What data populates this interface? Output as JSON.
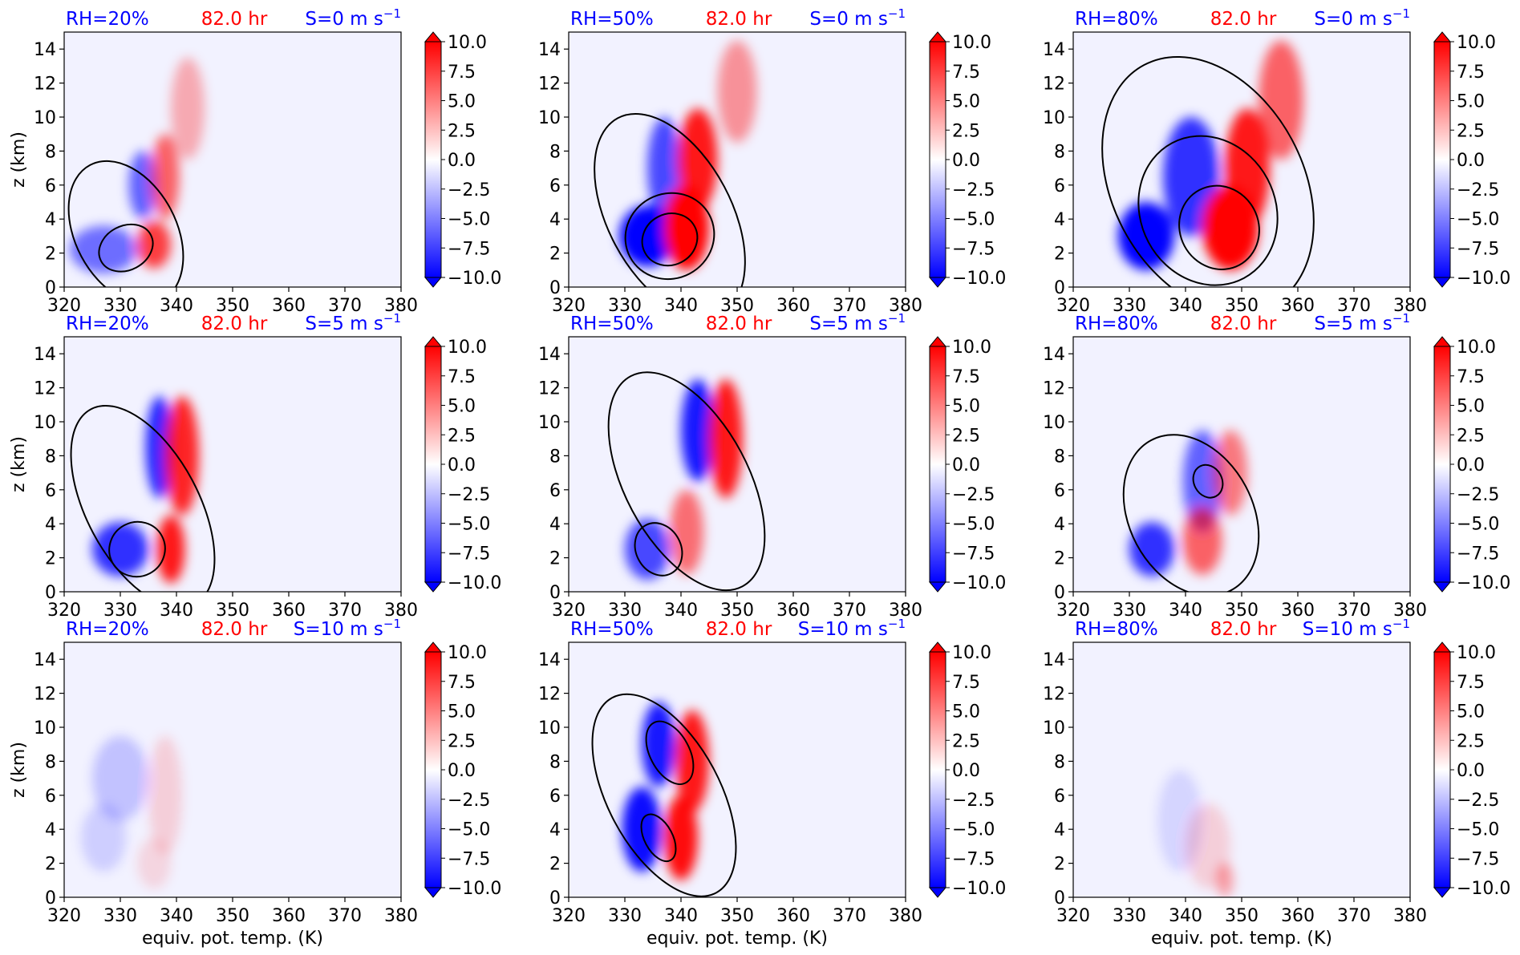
{
  "chart_data": {
    "type": "heatmap",
    "layout": "3x3 small multiples",
    "common": {
      "time_text": "82.0 hr",
      "xlabel": "equiv. pot. temp. (K)",
      "ylabel": "z (km)",
      "xlim": [
        320,
        380
      ],
      "ylim": [
        0,
        15
      ],
      "xticks": [
        "320",
        "330",
        "340",
        "350",
        "360",
        "370",
        "380"
      ],
      "yticks": [
        "0",
        "2",
        "4",
        "6",
        "8",
        "10",
        "12",
        "14"
      ],
      "colorbar": {
        "range": [
          -10.0,
          10.0
        ],
        "ticks": [
          "10.0",
          "7.5",
          "5.0",
          "2.5",
          "0.0",
          "−2.5",
          "−5.0",
          "−7.5",
          "−10.0"
        ],
        "extend": "both",
        "colormap": "bwr"
      },
      "colors": {
        "rh_text": "#0000ff",
        "time_text": "#ff0000",
        "shear_text": "#0000ff",
        "positive": "#ff0000",
        "negative": "#0000ff",
        "contour": "#000000",
        "background": "#f2f2ff"
      }
    },
    "panels": [
      {
        "rh": "RH=20%",
        "shear": "S=0 m s",
        "exp": "−1",
        "row": 0,
        "col": 0,
        "features": [
          {
            "sign": "neg",
            "t": 327,
            "z": 2.2,
            "dt": 6,
            "dz": 1.4,
            "amp": 0.55
          },
          {
            "sign": "neg",
            "t": 334,
            "z": 6.0,
            "dt": 2.5,
            "dz": 2.0,
            "amp": 0.6
          },
          {
            "sign": "pos",
            "t": 336,
            "z": 2.5,
            "dt": 3,
            "dz": 1.4,
            "amp": 0.75
          },
          {
            "sign": "pos",
            "t": 338,
            "z": 6.5,
            "dt": 2.5,
            "dz": 2.5,
            "amp": 0.6
          },
          {
            "sign": "pos",
            "t": 342,
            "z": 10.5,
            "dt": 3,
            "dz": 3,
            "amp": 0.3
          }
        ],
        "contours": [
          {
            "t": 331,
            "z": 3.2,
            "dt": 9,
            "dz": 4.5
          },
          {
            "t": 331,
            "z": 2.3,
            "dt": 5,
            "dz": 1.3
          }
        ]
      },
      {
        "rh": "RH=50%",
        "shear": "S=0 m s",
        "exp": "−1",
        "row": 0,
        "col": 1,
        "features": [
          {
            "sign": "neg",
            "t": 334,
            "z": 3.0,
            "dt": 5,
            "dz": 1.8,
            "amp": 1.0
          },
          {
            "sign": "neg",
            "t": 337,
            "z": 7.0,
            "dt": 3,
            "dz": 3.0,
            "amp": 0.7
          },
          {
            "sign": "pos",
            "t": 341,
            "z": 3.5,
            "dt": 4,
            "dz": 2.5,
            "amp": 1.0
          },
          {
            "sign": "pos",
            "t": 343,
            "z": 7.5,
            "dt": 3.5,
            "dz": 3.0,
            "amp": 0.9
          },
          {
            "sign": "pos",
            "t": 350,
            "z": 11.5,
            "dt": 3.5,
            "dz": 3.0,
            "amp": 0.4
          }
        ],
        "contours": [
          {
            "t": 338,
            "z": 4.2,
            "dt": 11,
            "dz": 6.5
          },
          {
            "t": 338,
            "z": 3.0,
            "dt": 8,
            "dz": 2.5
          },
          {
            "t": 338,
            "z": 2.8,
            "dt": 5,
            "dz": 1.5
          }
        ]
      },
      {
        "rh": "RH=80%",
        "shear": "S=0 m s",
        "exp": "−1",
        "row": 0,
        "col": 2,
        "features": [
          {
            "sign": "neg",
            "t": 333,
            "z": 3.0,
            "dt": 5,
            "dz": 2.0,
            "amp": 1.0
          },
          {
            "sign": "neg",
            "t": 341,
            "z": 6.5,
            "dt": 5,
            "dz": 3.5,
            "amp": 0.8
          },
          {
            "sign": "pos",
            "t": 348,
            "z": 3.5,
            "dt": 5,
            "dz": 2.5,
            "amp": 1.0
          },
          {
            "sign": "pos",
            "t": 351,
            "z": 7.0,
            "dt": 4,
            "dz": 3.5,
            "amp": 0.9
          },
          {
            "sign": "pos",
            "t": 357,
            "z": 11.0,
            "dt": 4,
            "dz": 3.5,
            "amp": 0.6
          }
        ],
        "contours": [
          {
            "t": 344,
            "z": 6.0,
            "dt": 17,
            "dz": 8.0
          },
          {
            "t": 344,
            "z": 4.5,
            "dt": 12,
            "dz": 4.5
          },
          {
            "t": 346,
            "z": 3.5,
            "dt": 7,
            "dz": 2.5
          }
        ]
      },
      {
        "rh": "RH=20%",
        "shear": "S=5 m s",
        "exp": "−1",
        "row": 1,
        "col": 0,
        "features": [
          {
            "sign": "neg",
            "t": 330,
            "z": 2.5,
            "dt": 5,
            "dz": 1.6,
            "amp": 0.8
          },
          {
            "sign": "neg",
            "t": 337,
            "z": 8.5,
            "dt": 2.5,
            "dz": 3.0,
            "amp": 0.85
          },
          {
            "sign": "pos",
            "t": 339,
            "z": 2.5,
            "dt": 2.5,
            "dz": 2.0,
            "amp": 0.9
          },
          {
            "sign": "pos",
            "t": 341,
            "z": 8.0,
            "dt": 3,
            "dz": 3.5,
            "amp": 0.85
          }
        ],
        "contours": [
          {
            "t": 334,
            "z": 5.0,
            "dt": 10,
            "dz": 6.5
          },
          {
            "t": 333,
            "z": 2.5,
            "dt": 5,
            "dz": 1.6
          }
        ]
      },
      {
        "rh": "RH=50%",
        "shear": "S=5 m s",
        "exp": "−1",
        "row": 1,
        "col": 1,
        "features": [
          {
            "sign": "neg",
            "t": 334,
            "z": 2.5,
            "dt": 4,
            "dz": 1.8,
            "amp": 0.7
          },
          {
            "sign": "neg",
            "t": 343,
            "z": 9.5,
            "dt": 3,
            "dz": 3.0,
            "amp": 0.9
          },
          {
            "sign": "pos",
            "t": 341,
            "z": 3.5,
            "dt": 3,
            "dz": 2.5,
            "amp": 0.55
          },
          {
            "sign": "pos",
            "t": 348,
            "z": 9.0,
            "dt": 3,
            "dz": 3.5,
            "amp": 0.9
          }
        ],
        "contours": [
          {
            "t": 341,
            "z": 6.5,
            "dt": 11,
            "dz": 7.0
          },
          {
            "t": 336,
            "z": 2.5,
            "dt": 4,
            "dz": 1.6
          }
        ]
      },
      {
        "rh": "RH=80%",
        "shear": "S=5 m s",
        "exp": "−1",
        "row": 1,
        "col": 2,
        "features": [
          {
            "sign": "neg",
            "t": 334,
            "z": 2.5,
            "dt": 4,
            "dz": 1.6,
            "amp": 0.8
          },
          {
            "sign": "neg",
            "t": 343,
            "z": 6.5,
            "dt": 3.5,
            "dz": 3.0,
            "amp": 0.6
          },
          {
            "sign": "pos",
            "t": 343,
            "z": 3.0,
            "dt": 3.5,
            "dz": 2.0,
            "amp": 0.6
          },
          {
            "sign": "pos",
            "t": 348,
            "z": 7.0,
            "dt": 3,
            "dz": 2.5,
            "amp": 0.5
          }
        ],
        "contours": [
          {
            "t": 341,
            "z": 4.5,
            "dt": 11,
            "dz": 5.0
          },
          {
            "t": 344,
            "z": 6.5,
            "dt": 2.5,
            "dz": 1.0
          }
        ]
      },
      {
        "rh": "RH=20%",
        "shear": "S=10 m s",
        "exp": "−1",
        "row": 2,
        "col": 0,
        "features": [
          {
            "sign": "neg",
            "t": 330,
            "z": 7.0,
            "dt": 5,
            "dz": 2.5,
            "amp": 0.2
          },
          {
            "sign": "neg",
            "t": 327,
            "z": 3.5,
            "dt": 4,
            "dz": 2.0,
            "amp": 0.15
          },
          {
            "sign": "pos",
            "t": 338,
            "z": 6.0,
            "dt": 3,
            "dz": 3.5,
            "amp": 0.15
          },
          {
            "sign": "pos",
            "t": 336,
            "z": 2.0,
            "dt": 3,
            "dz": 1.5,
            "amp": 0.12
          }
        ],
        "contours": []
      },
      {
        "rh": "RH=50%",
        "shear": "S=10 m s",
        "exp": "−1",
        "row": 2,
        "col": 1,
        "features": [
          {
            "sign": "neg",
            "t": 333,
            "z": 4.0,
            "dt": 3.5,
            "dz": 2.5,
            "amp": 0.95
          },
          {
            "sign": "neg",
            "t": 336,
            "z": 9.0,
            "dt": 3,
            "dz": 2.5,
            "amp": 0.9
          },
          {
            "sign": "pos",
            "t": 340,
            "z": 3.5,
            "dt": 3,
            "dz": 2.5,
            "amp": 0.95
          },
          {
            "sign": "pos",
            "t": 342,
            "z": 8.0,
            "dt": 3,
            "dz": 3.0,
            "amp": 0.9
          }
        ],
        "contours": [
          {
            "t": 337,
            "z": 6.0,
            "dt": 10,
            "dz": 6.5
          },
          {
            "t": 338,
            "z": 8.5,
            "dt": 3.5,
            "dz": 2.0
          },
          {
            "t": 336,
            "z": 3.5,
            "dt": 2.5,
            "dz": 1.5
          }
        ]
      },
      {
        "rh": "RH=80%",
        "shear": "S=10 m s",
        "exp": "−1",
        "row": 2,
        "col": 2,
        "features": [
          {
            "sign": "neg",
            "t": 339,
            "z": 4.5,
            "dt": 4,
            "dz": 3.0,
            "amp": 0.12
          },
          {
            "sign": "pos",
            "t": 344,
            "z": 3.0,
            "dt": 4,
            "dz": 2.5,
            "amp": 0.15
          },
          {
            "sign": "pos",
            "t": 347,
            "z": 1.0,
            "dt": 1.5,
            "dz": 1.0,
            "amp": 0.35
          }
        ],
        "contours": []
      }
    ]
  }
}
